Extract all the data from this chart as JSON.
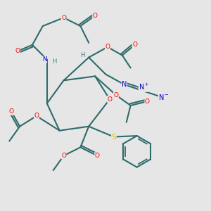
{
  "background_color": "#e6e6e6",
  "bond_color": "#2d6b6b",
  "bond_width": 1.5,
  "atom_colors": {
    "O": "#ff0000",
    "N": "#0000cc",
    "S": "#cccc00",
    "H": "#4a7a7a",
    "C": "#2d6b6b"
  },
  "figsize": [
    3.0,
    3.0
  ],
  "dpi": 100
}
